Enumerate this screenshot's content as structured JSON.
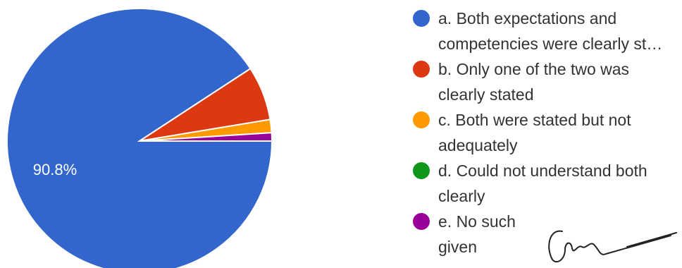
{
  "chart_data": {
    "type": "pie",
    "title": "",
    "slices": [
      {
        "label": "a. Both expectations and competencies were clearly st…",
        "value": 90.8,
        "color": "#3366cc",
        "data_label": "90.8%"
      },
      {
        "label": "b. Only one of the two was clearly stated",
        "value": 6.6,
        "color": "#dc3912",
        "data_label": ""
      },
      {
        "label": "c. Both were stated but not adequately",
        "value": 1.6,
        "color": "#ff9900",
        "data_label": ""
      },
      {
        "label": "d. Could not understand both clearly",
        "value": 0.0,
        "color": "#109618",
        "data_label": ""
      },
      {
        "label": "e. No such given",
        "value": 1.0,
        "color": "#990099",
        "data_label": ""
      }
    ],
    "legend_position": "right",
    "start_angle_note": "clockwise from 3 o'clock"
  },
  "legend": {
    "items": [
      {
        "line1": "a. Both expectations and",
        "line2": "competencies were clearly st…"
      },
      {
        "line1": "b. Only one of the two was",
        "line2": "clearly stated"
      },
      {
        "line1": "c. Both were stated but not",
        "line2": "adequately"
      },
      {
        "line1": "d. Could not understand both",
        "line2": "clearly"
      },
      {
        "line1": "e. No such",
        "line2": "given"
      }
    ]
  },
  "overlay": {
    "signature": "handwritten signature"
  }
}
